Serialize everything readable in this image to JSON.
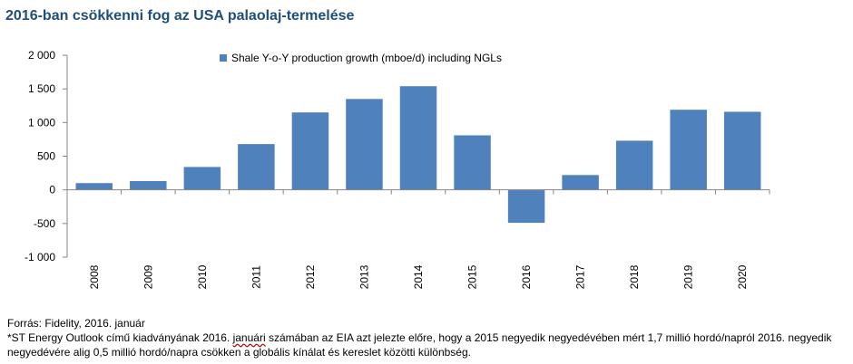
{
  "title": "2016-ban csökkenni fog az USA palaolaj-termelése",
  "chart_data": {
    "type": "bar",
    "categories": [
      "2008",
      "2009",
      "2010",
      "2011",
      "2012",
      "2013",
      "2014",
      "2015",
      "2016",
      "2017",
      "2018",
      "2019",
      "2020"
    ],
    "series": [
      {
        "name": "Shale Y-o-Y production growth (mboe/d) including NGLs",
        "color": "#4f81bd",
        "values": [
          100,
          130,
          340,
          680,
          1150,
          1350,
          1540,
          810,
          -490,
          220,
          730,
          1190,
          1160
        ]
      }
    ],
    "ylim": [
      -1000,
      2000
    ],
    "yticks": [
      2000,
      1500,
      1000,
      500,
      0,
      -500,
      -1000
    ],
    "ytick_labels": [
      "2 000",
      "1 500",
      "1 000",
      "500",
      "0",
      "-500",
      "-1 000"
    ],
    "grid": false,
    "legend_position": "top-center"
  },
  "footnotes": {
    "source": "Forrás: Fidelity, 2016. január",
    "note_part1": "*ST Energy Outlook című kiadványának 2016. ",
    "note_underlined": "januári",
    "note_part2": " számában az EIA azt jelezte előre, hogy a 2015 negyedik negyedévében mért 1,7 millió hordó/napról 2016. negyedik negyedévére alig 0,5 millió hordó/napra csökken a globális kínálat és kereslet közötti különbség."
  }
}
